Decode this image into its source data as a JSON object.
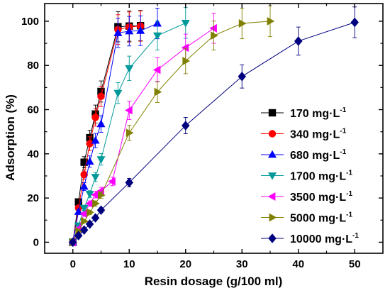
{
  "chart_data": {
    "type": "scatter",
    "xlabel": "Resin dosage (g/100 ml)",
    "ylabel": "Adsorption (%)",
    "xlim": [
      -5,
      55
    ],
    "ylim": [
      -5,
      108
    ],
    "xticks": [
      0,
      10,
      20,
      30,
      40,
      50
    ],
    "yticks": [
      0,
      20,
      40,
      60,
      80,
      100
    ],
    "grid": false,
    "legend_position": "right",
    "error_bars": true,
    "series": [
      {
        "name": "170 mg·L",
        "name_sup": "-1",
        "color": "#000000",
        "marker": "square",
        "x": [
          0,
          1,
          2,
          3,
          4,
          5,
          8,
          10,
          12
        ],
        "y": [
          0,
          18.2,
          36.2,
          47.3,
          58,
          68.2,
          97.5,
          97.8,
          98
        ]
      },
      {
        "name": "340 mg·L",
        "name_sup": "-1",
        "color": "#ff0000",
        "marker": "circle",
        "x": [
          0,
          1,
          2,
          3,
          4,
          5,
          8,
          10,
          12
        ],
        "y": [
          0,
          15.5,
          30.6,
          44.6,
          56.5,
          66,
          96.2,
          97.4,
          97.8
        ]
      },
      {
        "name": "680 mg·L",
        "name_sup": "-1",
        "color": "#0000ff",
        "marker": "triangle-up",
        "x": [
          0,
          1,
          2,
          3,
          4,
          5,
          8,
          10,
          12,
          15
        ],
        "y": [
          0,
          13.8,
          25.2,
          36.5,
          46,
          53.5,
          94.7,
          95.5,
          95.7,
          99
        ]
      },
      {
        "name": "1700 mg·L",
        "name_sup": "-1",
        "color": "#009999",
        "marker": "triangle-down",
        "x": [
          0,
          1,
          2,
          3,
          4,
          5,
          8,
          10,
          15,
          20
        ],
        "y": [
          0,
          7.5,
          15.5,
          21.8,
          29.5,
          37.5,
          67.5,
          78.7,
          93.5,
          99.2
        ]
      },
      {
        "name": "3500 mg·L",
        "name_sup": "-1",
        "color": "#ff00ff",
        "marker": "triangle-left",
        "x": [
          0,
          1,
          2,
          3,
          4,
          5,
          7,
          10,
          15,
          20,
          25
        ],
        "y": [
          0,
          6.2,
          12.8,
          17.5,
          21.5,
          23.2,
          27.5,
          59.7,
          78,
          88,
          96.8
        ]
      },
      {
        "name": "5000 mg·L",
        "name_sup": "-1",
        "color": "#808000",
        "marker": "triangle-right",
        "x": [
          0,
          1,
          2,
          3,
          4,
          5,
          10,
          15,
          20,
          25,
          30,
          35
        ],
        "y": [
          0,
          5,
          9.5,
          13.5,
          17.5,
          21.3,
          49.5,
          68,
          82,
          93.5,
          99,
          100
        ]
      },
      {
        "name": "10000 mg·L",
        "name_sup": "-1",
        "color": "#00007f",
        "marker": "diamond",
        "x": [
          0,
          1,
          2,
          3,
          4,
          5,
          10,
          20,
          30,
          40,
          50
        ],
        "y": [
          0,
          3,
          5.5,
          8.2,
          11,
          14.5,
          27,
          52.8,
          75,
          91,
          99.5
        ]
      }
    ]
  }
}
